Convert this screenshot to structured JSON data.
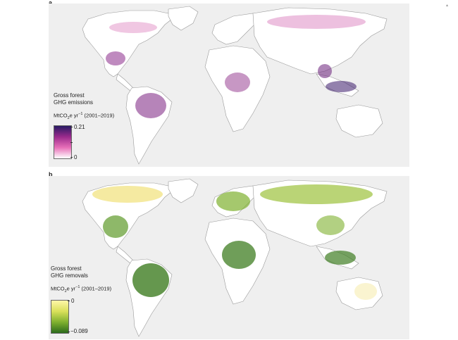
{
  "panels": [
    {
      "letter": "a",
      "legend": {
        "title_line1": "Gross forest",
        "title_line2": "GHG emissions",
        "unit_prefix": "MtCO",
        "unit_sub": "2",
        "unit_mid": "e yr",
        "unit_sup": "−1",
        "unit_suffix": " (2001–2019)",
        "max_label": "0.21",
        "min_label": "0",
        "colors": [
          "#ffffff",
          "#e76fb8",
          "#9a2a8c",
          "#281a63"
        ]
      }
    },
    {
      "letter": "b",
      "legend": {
        "title_line1": "Gross forest",
        "title_line2": "GHG removals",
        "unit_prefix": "MtCO",
        "unit_sub": "2",
        "unit_mid": "e yr",
        "unit_sup": "−1",
        "unit_suffix": " (2001–2019)",
        "max_label": "0",
        "min_label": "−0.089",
        "colors": [
          "#fff7a8",
          "#d9e05a",
          "#7fb02f",
          "#2c6b1c"
        ]
      }
    }
  ],
  "land_color": "#ffffff",
  "border_color": "#9a9a9a",
  "ocean_color": "#efefef"
}
